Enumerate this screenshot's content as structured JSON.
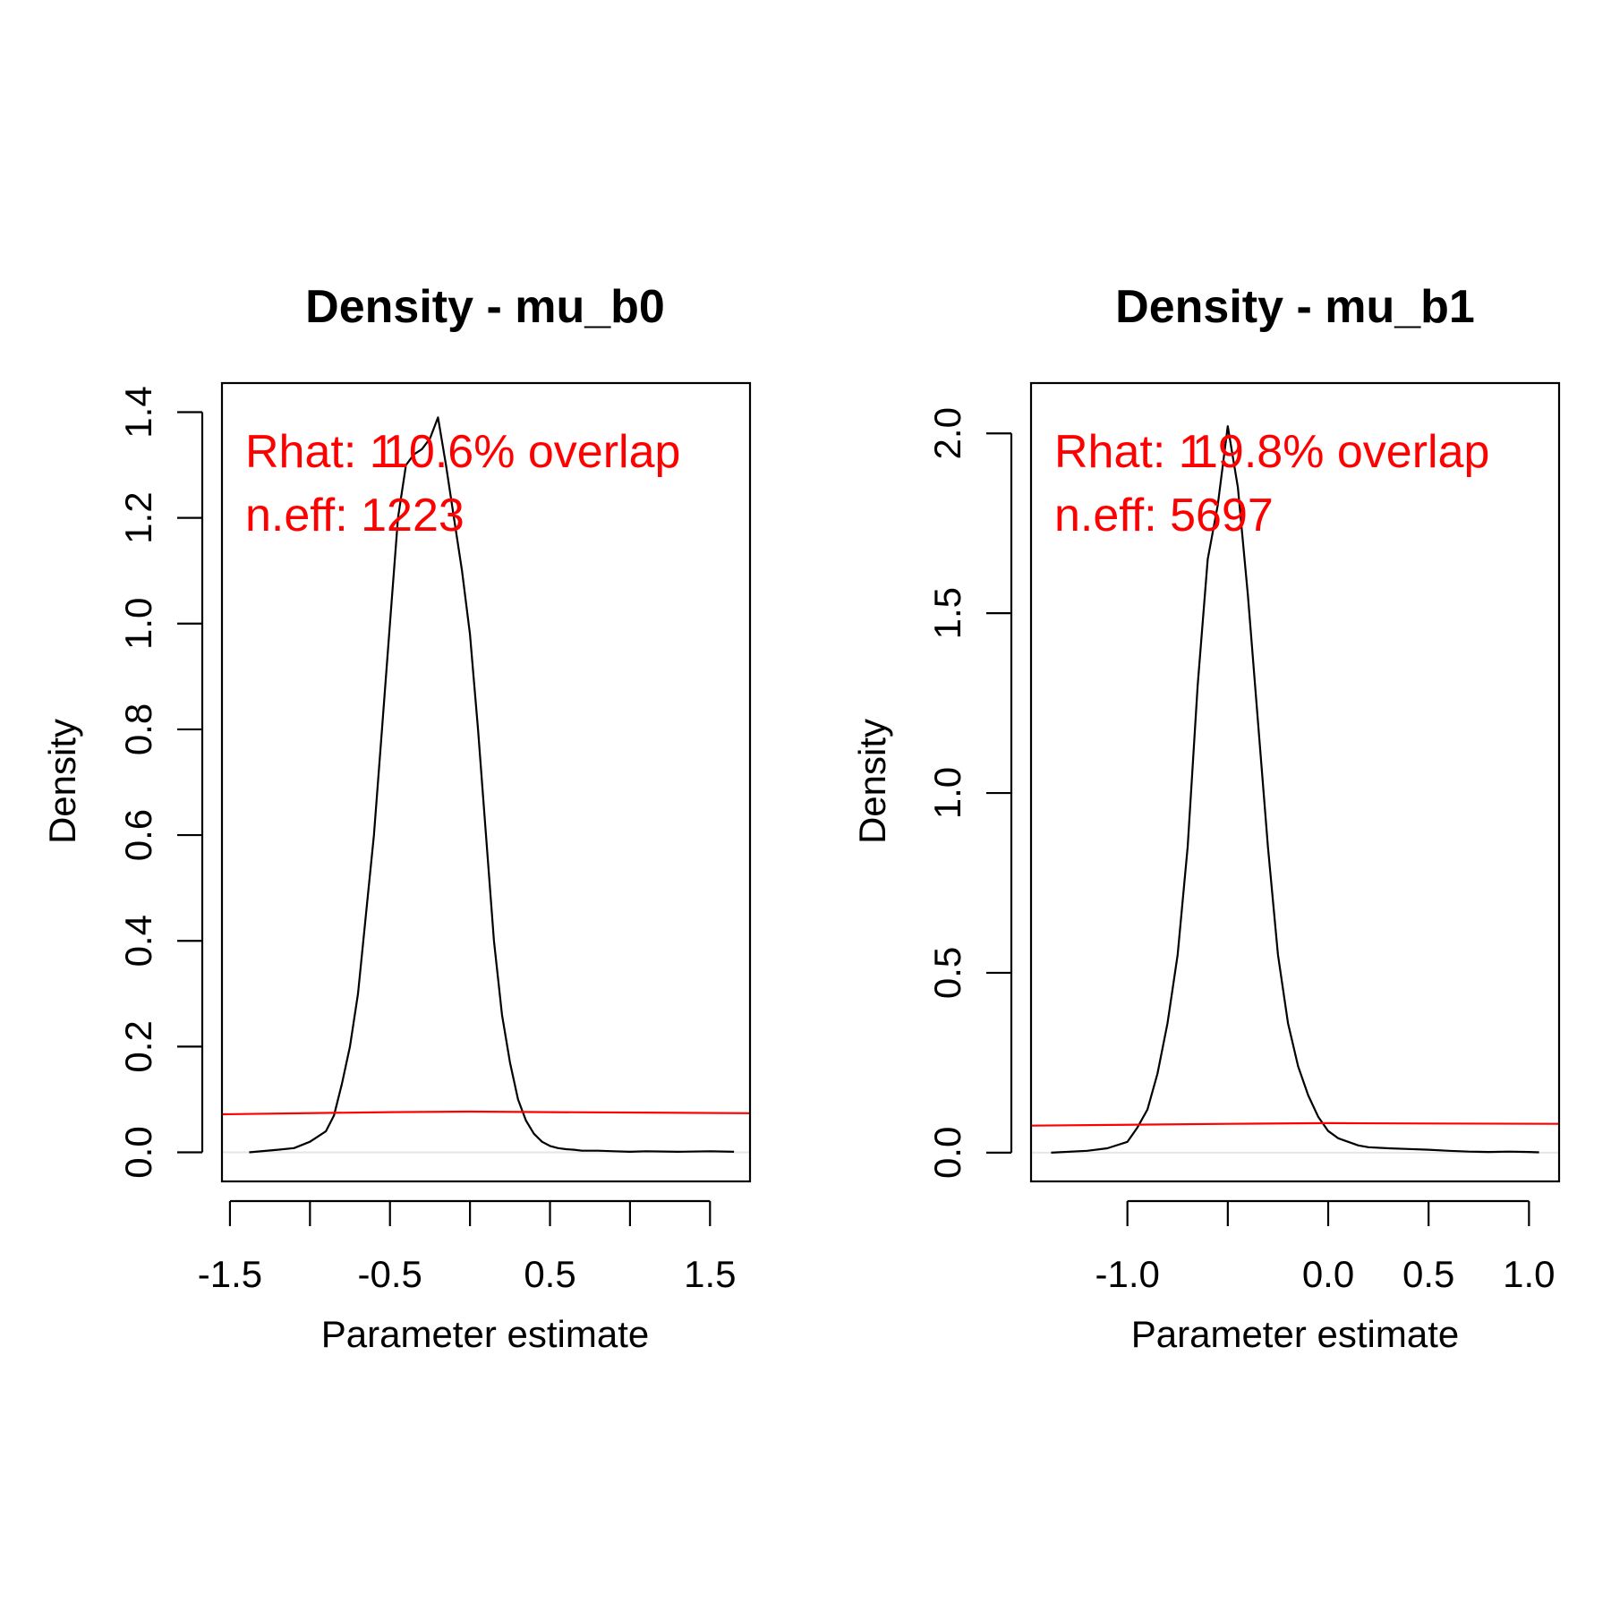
{
  "chart_data": [
    {
      "type": "line",
      "title": "Density - mu_b0",
      "xlabel": "Parameter estimate",
      "ylabel": "Density",
      "xlim": [
        -1.55,
        1.75
      ],
      "ylim": [
        -0.055,
        1.455
      ],
      "xticks": [
        -1.5,
        -1.0,
        -0.5,
        0.0,
        0.5,
        1.0,
        1.5
      ],
      "xtick_labels": [
        "-1.5",
        "",
        "-0.5",
        "",
        "0.5",
        "",
        "1.5"
      ],
      "yticks": [
        0.0,
        0.2,
        0.4,
        0.6,
        0.8,
        1.0,
        1.2,
        1.4
      ],
      "ytick_labels": [
        "0.0",
        "0.2",
        "0.4",
        "0.6",
        "0.8",
        "1.0",
        "1.2",
        "1.4"
      ],
      "annotations": [
        "Rhat: 1",
        "10.6% overlap",
        "n.eff: 1223"
      ],
      "series": [
        {
          "color": "#000000",
          "x": [
            -1.38,
            -1.2,
            -1.1,
            -1.0,
            -0.95,
            -0.9,
            -0.85,
            -0.8,
            -0.75,
            -0.7,
            -0.65,
            -0.6,
            -0.55,
            -0.5,
            -0.45,
            -0.4,
            -0.35,
            -0.3,
            -0.25,
            -0.2,
            -0.15,
            -0.1,
            -0.05,
            0.0,
            0.05,
            0.1,
            0.15,
            0.2,
            0.25,
            0.3,
            0.35,
            0.4,
            0.45,
            0.5,
            0.55,
            0.6,
            0.65,
            0.7,
            0.8,
            0.9,
            1.0,
            1.1,
            1.3,
            1.5,
            1.65
          ],
          "y": [
            0.0,
            0.005,
            0.008,
            0.02,
            0.03,
            0.04,
            0.07,
            0.13,
            0.2,
            0.3,
            0.45,
            0.6,
            0.8,
            1.0,
            1.2,
            1.3,
            1.32,
            1.33,
            1.35,
            1.39,
            1.3,
            1.2,
            1.1,
            0.98,
            0.8,
            0.6,
            0.4,
            0.26,
            0.17,
            0.1,
            0.06,
            0.035,
            0.02,
            0.012,
            0.008,
            0.006,
            0.005,
            0.003,
            0.003,
            0.002,
            0.001,
            0.002,
            0.001,
            0.002,
            0.001
          ]
        },
        {
          "color": "#ff0000",
          "x": [
            -1.55,
            -0.5,
            0.0,
            0.5,
            1.75
          ],
          "y": [
            0.072,
            0.076,
            0.077,
            0.076,
            0.074
          ]
        }
      ]
    },
    {
      "type": "line",
      "title": "Density - mu_b1",
      "xlabel": "Parameter estimate",
      "ylabel": "Density",
      "xlim": [
        -1.48,
        1.15
      ],
      "ylim": [
        -0.08,
        2.14
      ],
      "xticks": [
        -1.0,
        -0.5,
        0.0,
        0.5,
        1.0
      ],
      "xtick_labels": [
        "-1.0",
        "",
        "0.0",
        "0.5",
        "1.0"
      ],
      "yticks": [
        0.0,
        0.5,
        1.0,
        1.5,
        2.0
      ],
      "ytick_labels": [
        "0.0",
        "0.5",
        "1.0",
        "1.5",
        "2.0"
      ],
      "annotations": [
        "Rhat: 1",
        "19.8% overlap",
        "n.eff: 5697"
      ],
      "series": [
        {
          "color": "#000000",
          "x": [
            -1.38,
            -1.2,
            -1.1,
            -1.0,
            -0.95,
            -0.9,
            -0.85,
            -0.8,
            -0.75,
            -0.7,
            -0.65,
            -0.6,
            -0.55,
            -0.5,
            -0.45,
            -0.4,
            -0.35,
            -0.3,
            -0.25,
            -0.2,
            -0.15,
            -0.1,
            -0.05,
            0.0,
            0.05,
            0.1,
            0.15,
            0.2,
            0.3,
            0.4,
            0.5,
            0.6,
            0.7,
            0.8,
            0.9,
            1.0,
            1.05
          ],
          "y": [
            0.0,
            0.005,
            0.012,
            0.03,
            0.07,
            0.12,
            0.22,
            0.36,
            0.55,
            0.85,
            1.3,
            1.65,
            1.8,
            2.02,
            1.85,
            1.55,
            1.2,
            0.85,
            0.55,
            0.36,
            0.24,
            0.16,
            0.1,
            0.06,
            0.04,
            0.03,
            0.02,
            0.015,
            0.012,
            0.01,
            0.008,
            0.005,
            0.003,
            0.002,
            0.003,
            0.002,
            0.001
          ]
        },
        {
          "color": "#ff0000",
          "x": [
            -1.48,
            -0.5,
            0.0,
            0.5,
            1.15
          ],
          "y": [
            0.075,
            0.08,
            0.082,
            0.081,
            0.08
          ]
        }
      ]
    }
  ]
}
